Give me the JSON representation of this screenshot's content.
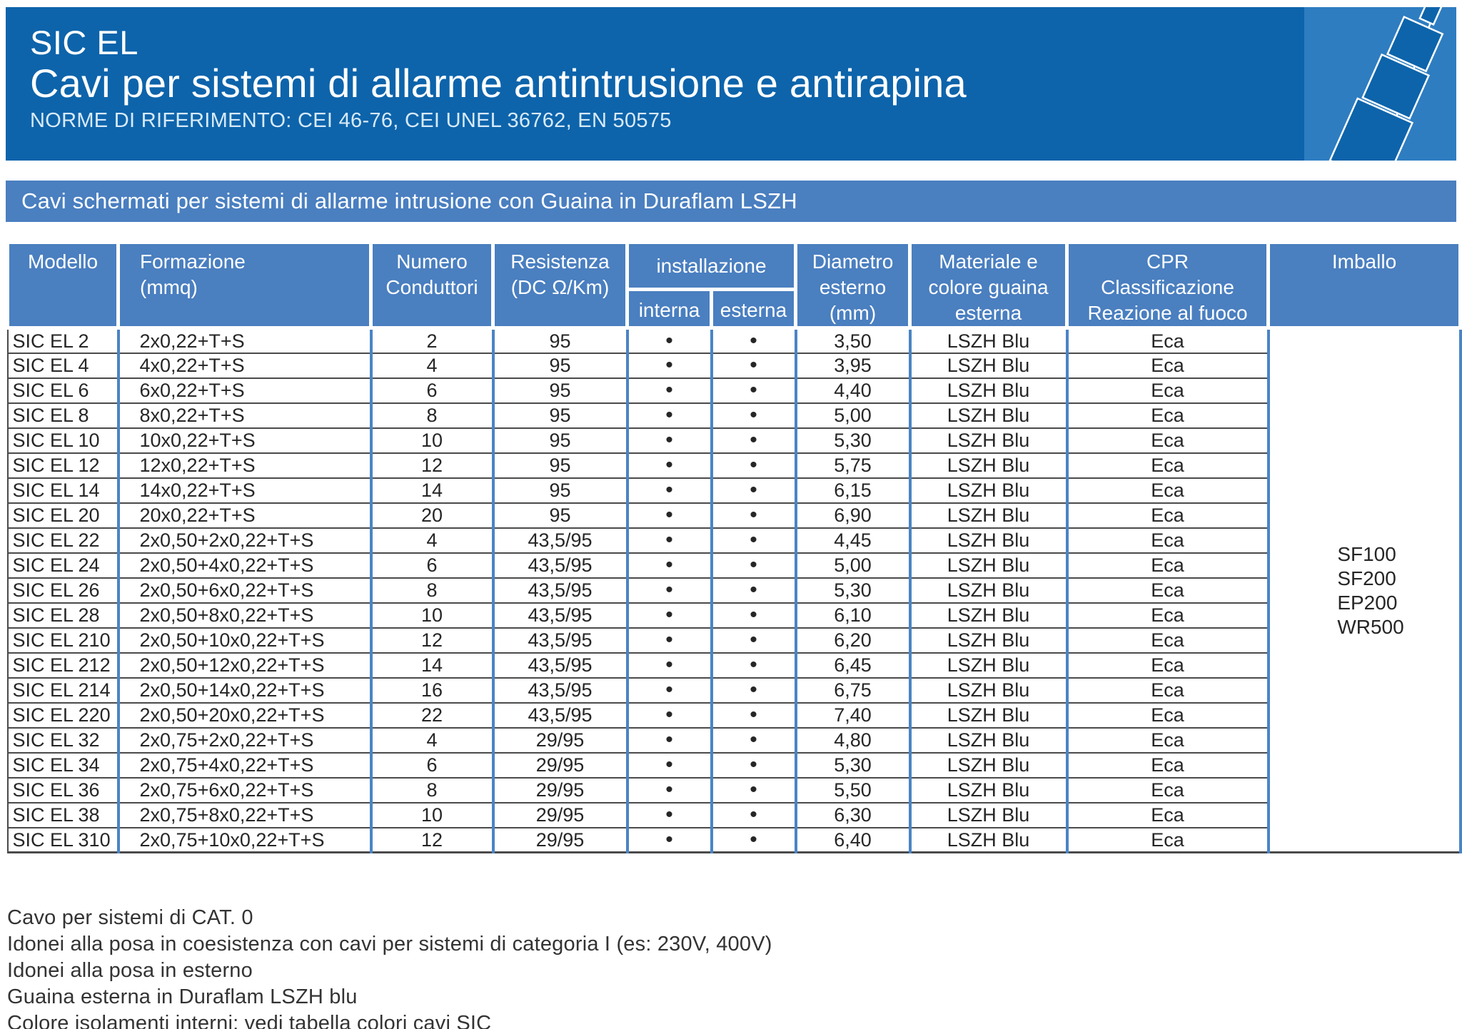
{
  "colors": {
    "header_band": "#0d64ab",
    "logo_box": "#2e7dc1",
    "banner_blue": "#4a7fc0",
    "grid_blue": "#4a84c6",
    "row_line": "#4a4a4a",
    "body_text": "#262626"
  },
  "header": {
    "title": "SIC EL",
    "subtitle": "Cavi per sistemi di allarme antintrusione e antirapina",
    "norms": "NORME DI RIFERIMENTO: CEI 46-76, CEI UNEL 36762, EN 50575"
  },
  "banner": {
    "text": "Cavi schermati per sistemi di allarme intrusione con Guaina in Duraflam LSZH"
  },
  "table": {
    "headers": {
      "modello": "Modello",
      "formazione": "Formazione\n(mmq)",
      "conduttori": "Numero\nConduttori",
      "resistenza": "Resistenza\n(DC Ω/Km)",
      "installazione": "installazione",
      "interna": "interna",
      "esterna": "esterna",
      "diametro": "Diametro\nesterno\n(mm)",
      "guaina": "Materiale e\ncolore guaina\nesterna",
      "cpr": "CPR\nClassificazione\nReazione al fuoco",
      "imballo": "Imballo"
    },
    "imballo": [
      "SF100",
      "SF200",
      "EP200",
      "WR500"
    ],
    "rows": [
      {
        "modello": "SIC EL 2",
        "formazione": "2x0,22+T+S",
        "conduttori": "2",
        "resistenza": "95",
        "interna": "•",
        "esterna": "•",
        "diametro": "3,50",
        "guaina": "LSZH Blu",
        "cpr": "Eca"
      },
      {
        "modello": "SIC EL 4",
        "formazione": "4x0,22+T+S",
        "conduttori": "4",
        "resistenza": "95",
        "interna": "•",
        "esterna": "•",
        "diametro": "3,95",
        "guaina": "LSZH Blu",
        "cpr": "Eca"
      },
      {
        "modello": "SIC EL 6",
        "formazione": "6x0,22+T+S",
        "conduttori": "6",
        "resistenza": "95",
        "interna": "•",
        "esterna": "•",
        "diametro": "4,40",
        "guaina": "LSZH Blu",
        "cpr": "Eca"
      },
      {
        "modello": "SIC EL 8",
        "formazione": "8x0,22+T+S",
        "conduttori": "8",
        "resistenza": "95",
        "interna": "•",
        "esterna": "•",
        "diametro": "5,00",
        "guaina": "LSZH Blu",
        "cpr": "Eca"
      },
      {
        "modello": "SIC EL 10",
        "formazione": "10x0,22+T+S",
        "conduttori": "10",
        "resistenza": "95",
        "interna": "•",
        "esterna": "•",
        "diametro": "5,30",
        "guaina": "LSZH Blu",
        "cpr": "Eca"
      },
      {
        "modello": "SIC EL 12",
        "formazione": "12x0,22+T+S",
        "conduttori": "12",
        "resistenza": "95",
        "interna": "•",
        "esterna": "•",
        "diametro": "5,75",
        "guaina": "LSZH Blu",
        "cpr": "Eca"
      },
      {
        "modello": "SIC EL 14",
        "formazione": "14x0,22+T+S",
        "conduttori": "14",
        "resistenza": "95",
        "interna": "•",
        "esterna": "•",
        "diametro": "6,15",
        "guaina": "LSZH Blu",
        "cpr": "Eca"
      },
      {
        "modello": "SIC EL 20",
        "formazione": "20x0,22+T+S",
        "conduttori": "20",
        "resistenza": "95",
        "interna": "•",
        "esterna": "•",
        "diametro": "6,90",
        "guaina": "LSZH Blu",
        "cpr": "Eca"
      },
      {
        "modello": "SIC EL 22",
        "formazione": "2x0,50+2x0,22+T+S",
        "conduttori": "4",
        "resistenza": "43,5/95",
        "interna": "•",
        "esterna": "•",
        "diametro": "4,45",
        "guaina": "LSZH Blu",
        "cpr": "Eca"
      },
      {
        "modello": "SIC EL 24",
        "formazione": "2x0,50+4x0,22+T+S",
        "conduttori": "6",
        "resistenza": "43,5/95",
        "interna": "•",
        "esterna": "•",
        "diametro": "5,00",
        "guaina": "LSZH Blu",
        "cpr": "Eca"
      },
      {
        "modello": "SIC EL 26",
        "formazione": "2x0,50+6x0,22+T+S",
        "conduttori": "8",
        "resistenza": "43,5/95",
        "interna": "•",
        "esterna": "•",
        "diametro": "5,30",
        "guaina": "LSZH Blu",
        "cpr": "Eca"
      },
      {
        "modello": "SIC EL 28",
        "formazione": "2x0,50+8x0,22+T+S",
        "conduttori": "10",
        "resistenza": "43,5/95",
        "interna": "•",
        "esterna": "•",
        "diametro": "6,10",
        "guaina": "LSZH Blu",
        "cpr": "Eca"
      },
      {
        "modello": "SIC EL 210",
        "formazione": "2x0,50+10x0,22+T+S",
        "conduttori": "12",
        "resistenza": "43,5/95",
        "interna": "•",
        "esterna": "•",
        "diametro": "6,20",
        "guaina": "LSZH Blu",
        "cpr": "Eca"
      },
      {
        "modello": "SIC EL 212",
        "formazione": "2x0,50+12x0,22+T+S",
        "conduttori": "14",
        "resistenza": "43,5/95",
        "interna": "•",
        "esterna": "•",
        "diametro": "6,45",
        "guaina": "LSZH Blu",
        "cpr": "Eca"
      },
      {
        "modello": "SIC EL 214",
        "formazione": "2x0,50+14x0,22+T+S",
        "conduttori": "16",
        "resistenza": "43,5/95",
        "interna": "•",
        "esterna": "•",
        "diametro": "6,75",
        "guaina": "LSZH Blu",
        "cpr": "Eca"
      },
      {
        "modello": "SIC EL 220",
        "formazione": "2x0,50+20x0,22+T+S",
        "conduttori": "22",
        "resistenza": "43,5/95",
        "interna": "•",
        "esterna": "•",
        "diametro": "7,40",
        "guaina": "LSZH Blu",
        "cpr": "Eca"
      },
      {
        "modello": "SIC EL 32",
        "formazione": "2x0,75+2x0,22+T+S",
        "conduttori": "4",
        "resistenza": "29/95",
        "interna": "•",
        "esterna": "•",
        "diametro": "4,80",
        "guaina": "LSZH Blu",
        "cpr": "Eca"
      },
      {
        "modello": "SIC EL 34",
        "formazione": "2x0,75+4x0,22+T+S",
        "conduttori": "6",
        "resistenza": "29/95",
        "interna": "•",
        "esterna": "•",
        "diametro": "5,30",
        "guaina": "LSZH Blu",
        "cpr": "Eca"
      },
      {
        "modello": "SIC EL 36",
        "formazione": "2x0,75+6x0,22+T+S",
        "conduttori": "8",
        "resistenza": "29/95",
        "interna": "•",
        "esterna": "•",
        "diametro": "5,50",
        "guaina": "LSZH Blu",
        "cpr": "Eca"
      },
      {
        "modello": "SIC EL 38",
        "formazione": "2x0,75+8x0,22+T+S",
        "conduttori": "10",
        "resistenza": "29/95",
        "interna": "•",
        "esterna": "•",
        "diametro": "6,30",
        "guaina": "LSZH Blu",
        "cpr": "Eca"
      },
      {
        "modello": "SIC EL 310",
        "formazione": "2x0,75+10x0,22+T+S",
        "conduttori": "12",
        "resistenza": "29/95",
        "interna": "•",
        "esterna": "•",
        "diametro": "6,40",
        "guaina": "LSZH Blu",
        "cpr": "Eca"
      }
    ]
  },
  "notes": [
    "Cavo per sistemi di CAT. 0",
    "Idonei alla posa in coesistenza con cavi per sistemi di categoria I (es: 230V, 400V)",
    "Idonei alla posa in esterno",
    "Guaina esterna in Duraflam LSZH blu",
    "Colore isolamenti interni: vedi tabella colori cavi SIC"
  ]
}
